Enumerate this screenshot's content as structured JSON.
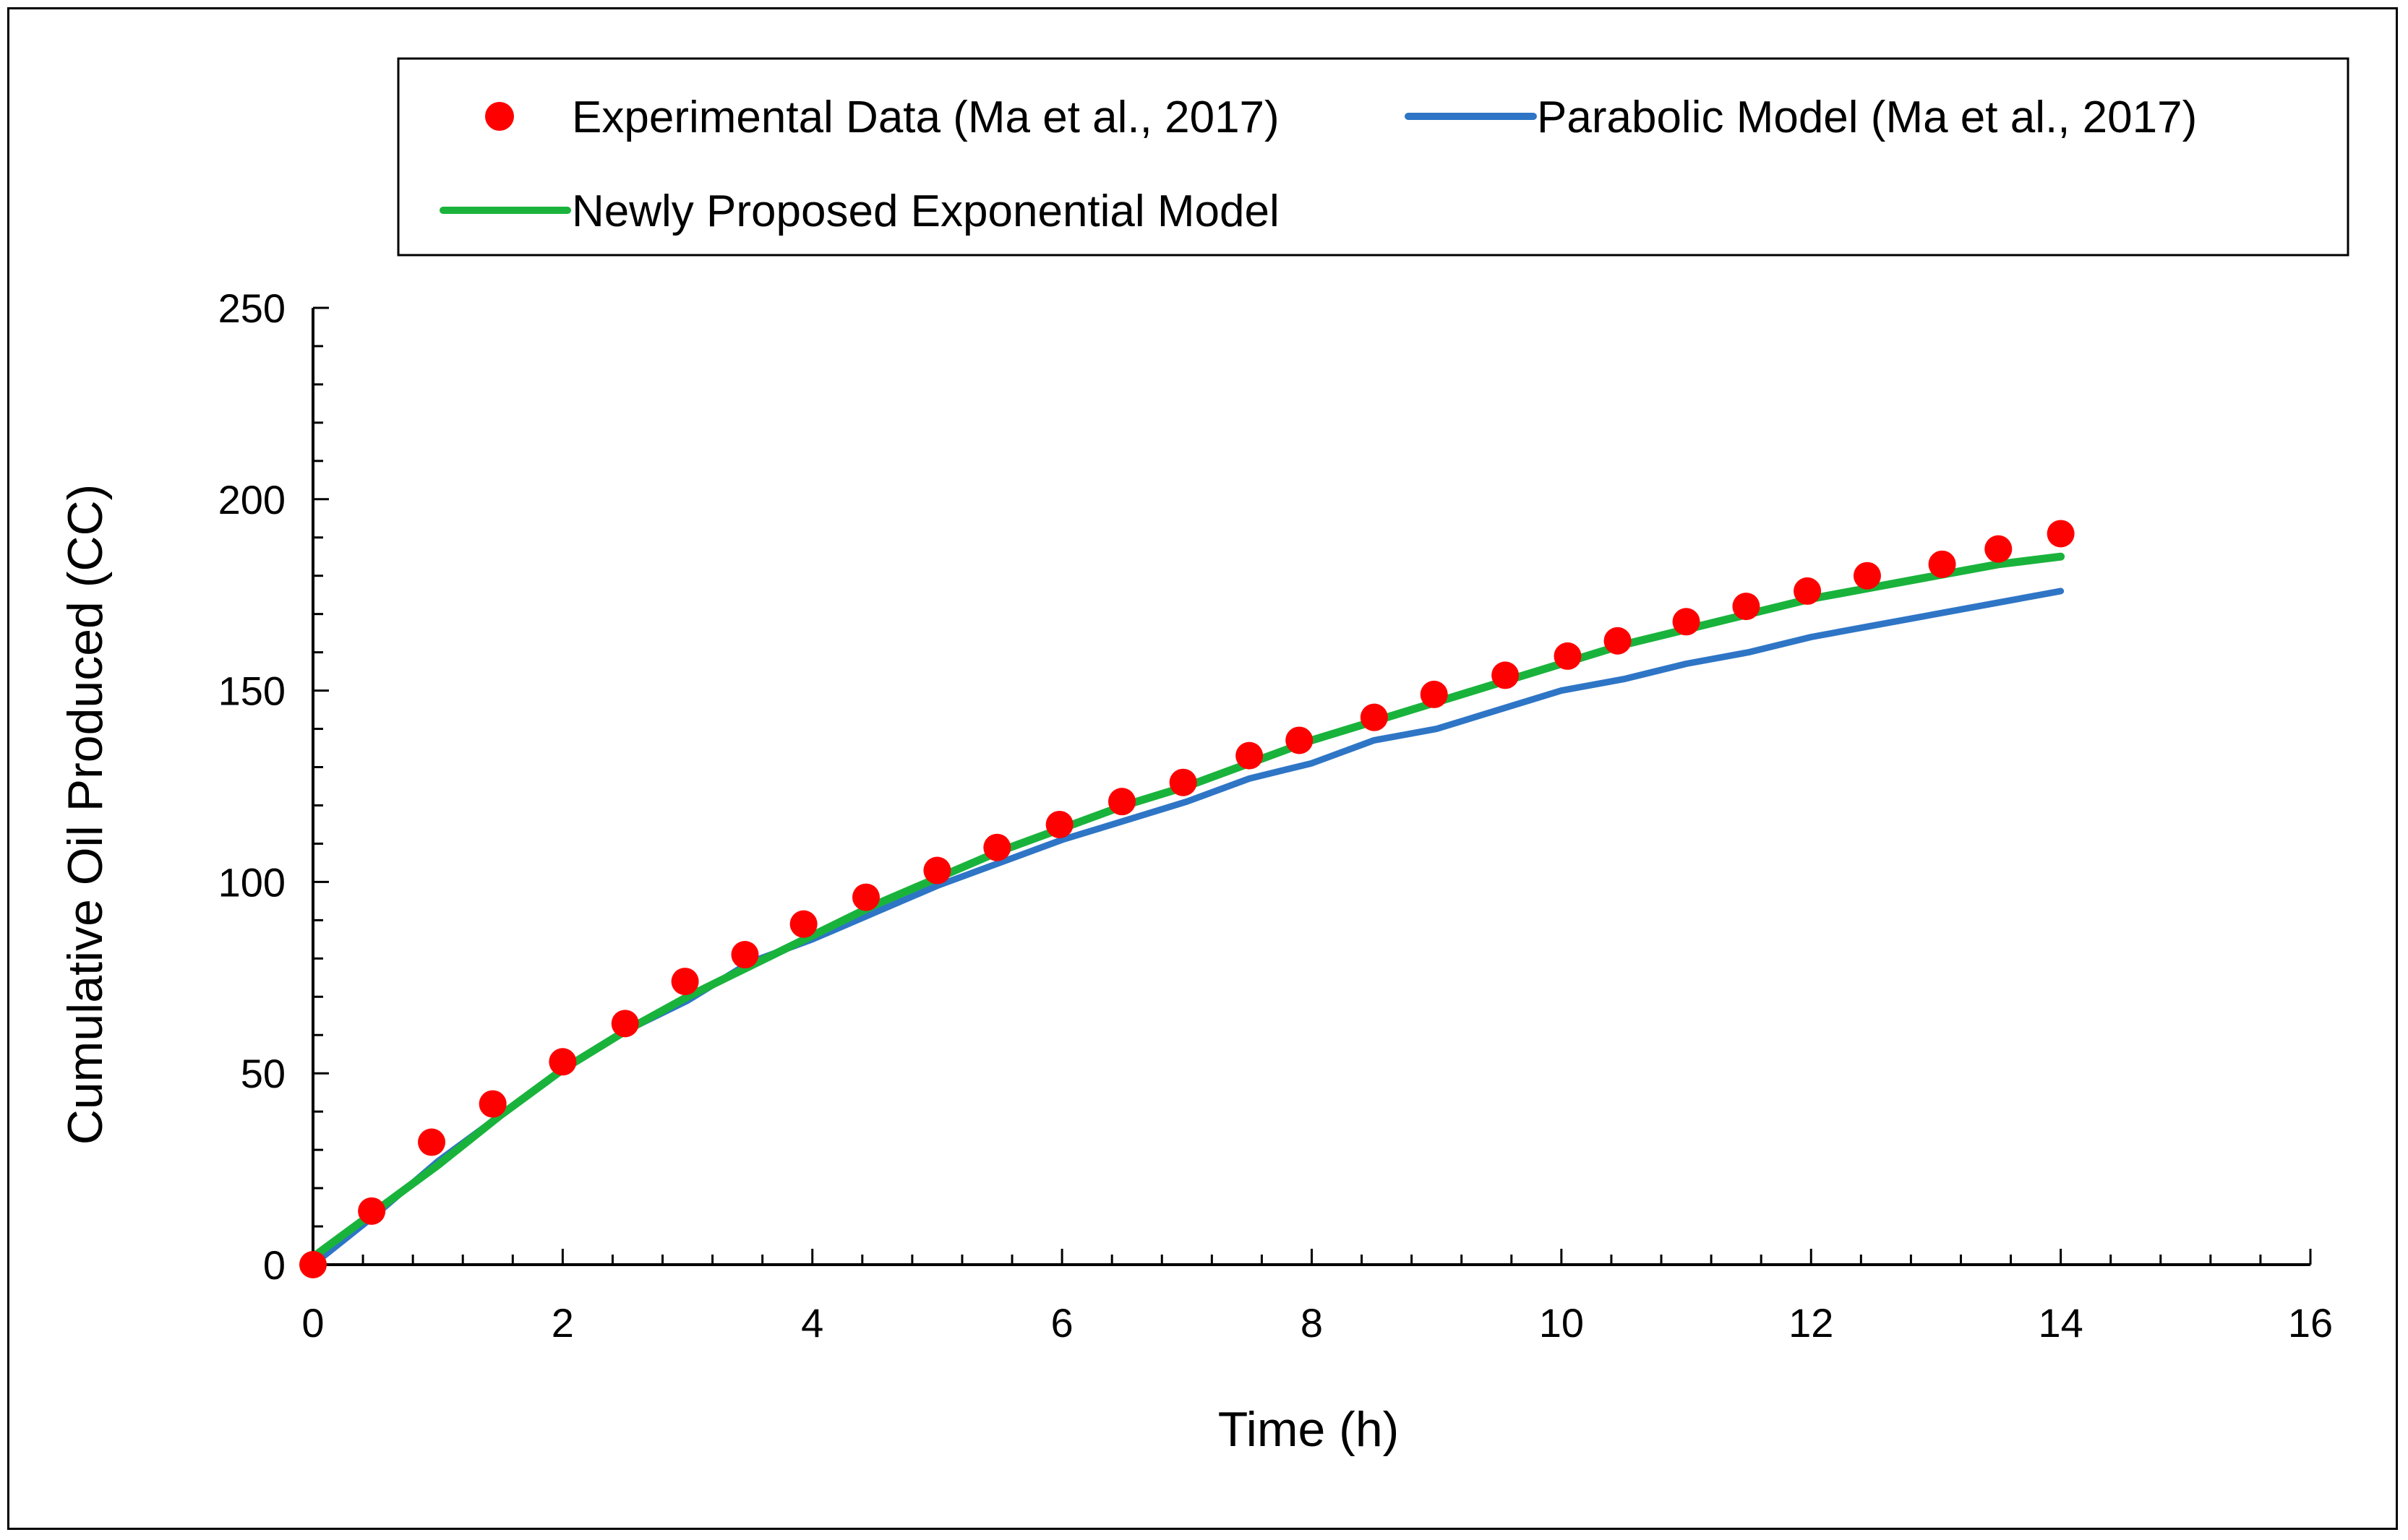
{
  "chart_data": {
    "type": "scatter",
    "title": "",
    "xlabel": "Time (h)",
    "ylabel": "Cumulative Oil Produced (CC)",
    "xlim": [
      0,
      16
    ],
    "ylim": [
      0,
      250
    ],
    "x_ticks": [
      0,
      2,
      4,
      6,
      8,
      10,
      12,
      14,
      16
    ],
    "y_ticks": [
      0,
      50,
      100,
      150,
      200,
      250
    ],
    "x_tick_labels": [
      "0",
      "2",
      "4",
      "6",
      "8",
      "10",
      "12",
      "14",
      "16"
    ],
    "y_tick_labels": [
      "0",
      "50",
      "100",
      "150",
      "200",
      "250"
    ],
    "grid": false,
    "legend_position": "top",
    "series": [
      {
        "name": "Experimental Data (Ma et al., 2017)",
        "kind": "marker",
        "color": "#ff0000",
        "x": [
          0,
          0.47,
          0.95,
          1.44,
          2.0,
          2.5,
          2.98,
          3.46,
          3.93,
          4.43,
          5.0,
          5.48,
          5.98,
          6.48,
          6.97,
          7.5,
          7.9,
          8.5,
          8.98,
          9.55,
          10.05,
          10.45,
          11.0,
          11.48,
          11.97,
          12.45,
          13.05,
          13.5,
          14.0
        ],
        "y": [
          0,
          14,
          32,
          42,
          53,
          63,
          74,
          81,
          89,
          96,
          103,
          109,
          115,
          121,
          126,
          133,
          137,
          143,
          149,
          154,
          159,
          163,
          168,
          172,
          176,
          180,
          183,
          187,
          191
        ]
      },
      {
        "name": "Parabolic Model (Ma et al., 2017)",
        "kind": "line",
        "color": "#2e75c6",
        "x": [
          0,
          0.5,
          1,
          1.5,
          2,
          2.5,
          3,
          3.5,
          4,
          4.5,
          5,
          5.5,
          6,
          6.5,
          7,
          7.5,
          8,
          8.5,
          9,
          9.5,
          10,
          10.5,
          11,
          11.5,
          12,
          12.5,
          13,
          13.5,
          14
        ],
        "y": [
          0,
          13,
          27,
          39,
          51,
          61,
          69,
          79,
          85,
          92,
          99,
          105,
          111,
          116,
          121,
          127,
          131,
          137,
          140,
          145,
          150,
          153,
          157,
          160,
          164,
          167,
          170,
          173,
          176
        ]
      },
      {
        "name": "Newly Proposed Exponential Model",
        "kind": "line",
        "color": "#19b33c",
        "x": [
          0,
          0.5,
          1,
          1.5,
          2,
          2.5,
          3,
          3.5,
          4,
          4.5,
          5,
          5.5,
          6,
          6.5,
          7,
          7.5,
          8,
          8.5,
          9,
          9.5,
          10,
          10.5,
          11,
          11.5,
          12,
          12.5,
          13,
          13.5,
          14
        ],
        "y": [
          2,
          14,
          26,
          39,
          51,
          61,
          70,
          78,
          86,
          94,
          101,
          108,
          114,
          120,
          125,
          131,
          137,
          142,
          147,
          152,
          157,
          162,
          166,
          170,
          174,
          177,
          180,
          183,
          185
        ]
      }
    ]
  }
}
